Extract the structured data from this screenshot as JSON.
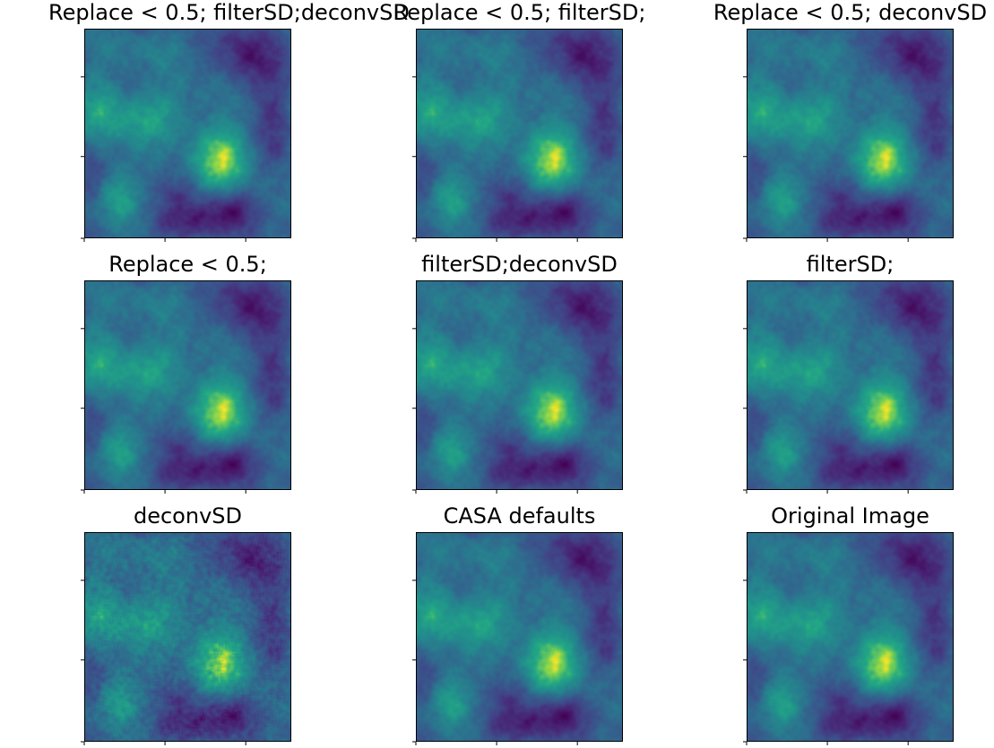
{
  "figure": {
    "layout": "3x3"
  },
  "chart_data": [
    {
      "type": "heatmap",
      "title": "Replace < 0.5; filterSD;deconvSD",
      "colormap": "viridis",
      "variant": "standard",
      "xlabel": "",
      "ylabel": "",
      "xtick_labels": [],
      "ytick_labels": []
    },
    {
      "type": "heatmap",
      "title": "Replace < 0.5; filterSD;",
      "colormap": "viridis",
      "variant": "standard",
      "xlabel": "",
      "ylabel": "",
      "xtick_labels": [],
      "ytick_labels": []
    },
    {
      "type": "heatmap",
      "title": "Replace < 0.5; deconvSD",
      "colormap": "viridis",
      "variant": "standard",
      "xlabel": "",
      "ylabel": "",
      "xtick_labels": [],
      "ytick_labels": []
    },
    {
      "type": "heatmap",
      "title": "Replace < 0.5;",
      "colormap": "viridis",
      "variant": "standard",
      "xlabel": "",
      "ylabel": "",
      "xtick_labels": [],
      "ytick_labels": []
    },
    {
      "type": "heatmap",
      "title": "filterSD;deconvSD",
      "colormap": "viridis",
      "variant": "standard",
      "xlabel": "",
      "ylabel": "",
      "xtick_labels": [],
      "ytick_labels": []
    },
    {
      "type": "heatmap",
      "title": "filterSD;",
      "colormap": "viridis",
      "variant": "standard",
      "xlabel": "",
      "ylabel": "",
      "xtick_labels": [],
      "ytick_labels": []
    },
    {
      "type": "heatmap",
      "title": "deconvSD",
      "colormap": "viridis",
      "variant": "sharpened",
      "xlabel": "",
      "ylabel": "",
      "xtick_labels": [],
      "ytick_labels": []
    },
    {
      "type": "heatmap",
      "title": "CASA defaults",
      "colormap": "viridis",
      "variant": "standard",
      "xlabel": "",
      "ylabel": "",
      "xtick_labels": [],
      "ytick_labels": []
    },
    {
      "type": "heatmap",
      "title": "Original Image",
      "colormap": "viridis",
      "variant": "standard",
      "xlabel": "",
      "ylabel": "",
      "xtick_labels": [],
      "ytick_labels": []
    }
  ]
}
